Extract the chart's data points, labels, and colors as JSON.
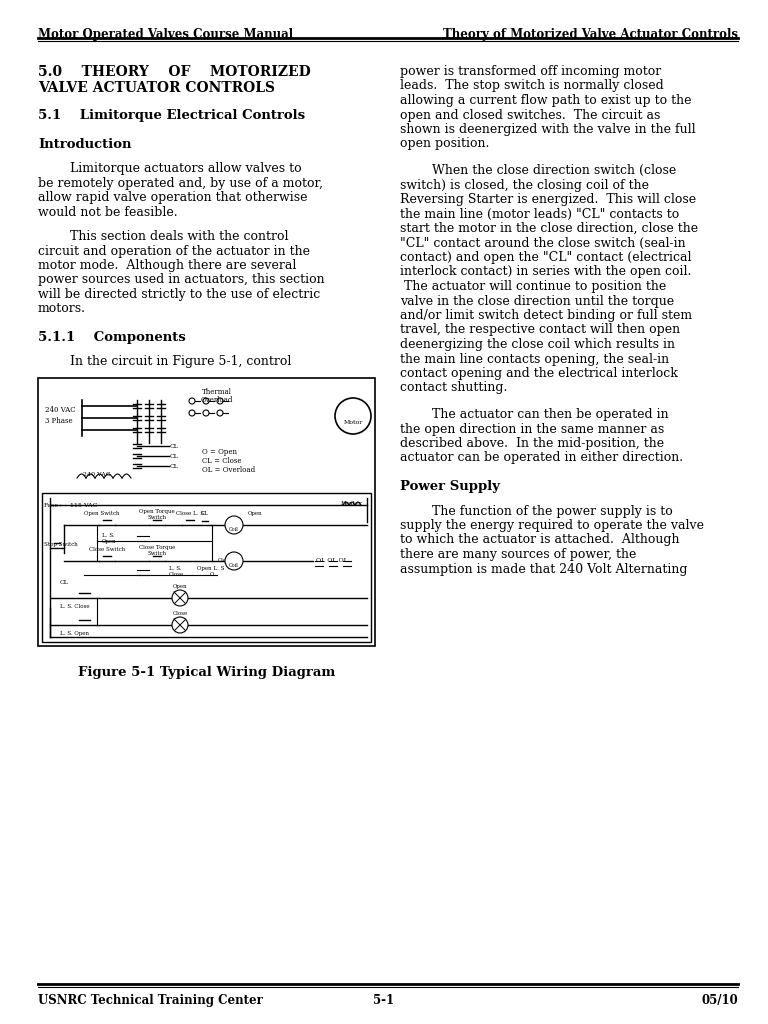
{
  "header_left": "Motor Operated Valves Course Manual",
  "header_right": "Theory of Motorized Valve Actuator Controls",
  "footer_left": "USNRC Technical Training Center",
  "footer_center": "5-1",
  "footer_right": "05/10",
  "sec50_line1": "5.0    THEORY    OF    MOTORIZED",
  "sec50_line2": "VALVE ACTUATOR CONTROLS",
  "sec51": "5.1    Limitorque Electrical Controls",
  "intro": "Introduction",
  "components": "5.1.1    Components",
  "fig_caption": "Figure 5-1 Typical Wiring Diagram",
  "left_para1": [
    "Limitorque actuators allow valves to",
    "be remotely operated and, by use of a motor,",
    "allow rapid valve operation that otherwise",
    "would not be feasible."
  ],
  "left_para2": [
    "This section deals with the control",
    "circuit and operation of the actuator in the",
    "motor mode.  Although there are several",
    "power sources used in actuators, this section",
    "will be directed strictly to the use of electric",
    "motors."
  ],
  "left_para3_last": "In the circuit in Figure 5-1, control",
  "right_para1": [
    "power is transformed off incoming motor",
    "leads.  The stop switch is normally closed",
    "allowing a current flow path to exist up to the",
    "open and closed switches.  The circuit as",
    "shown is deenergized with the valve in the full",
    "open position."
  ],
  "right_para2": [
    "When the close direction switch (close",
    "switch) is closed, the closing coil of the",
    "Reversing Starter is energized.  This will close",
    "the main line (motor leads) \"CL\" contacts to",
    "start the motor in the close direction, close the",
    "\"CL\" contact around the close switch (seal-in",
    "contact) and open the \"CL\" contact (electrical",
    "interlock contact) in series with the open coil.",
    " The actuator will continue to position the",
    "valve in the close direction until the torque",
    "and/or limit switch detect binding or full stem",
    "travel, the respective contact will then open",
    "deenergizing the close coil which results in",
    "the main line contacts opening, the seal-in",
    "contact opening and the electrical interlock",
    "contact shutting."
  ],
  "right_para3": [
    "The actuator can then be operated in",
    "the open direction in the same manner as",
    "described above.  In the mid-position, the",
    "actuator can be operated in either direction."
  ],
  "power_supply": "Power Supply",
  "right_para4": [
    "The function of the power supply is to",
    "supply the energy required to operate the valve",
    "to which the actuator is attached.  Although",
    "there are many sources of power, the",
    "assumption is made that 240 Volt Alternating"
  ],
  "bg_color": "#ffffff",
  "text_color": "#000000"
}
